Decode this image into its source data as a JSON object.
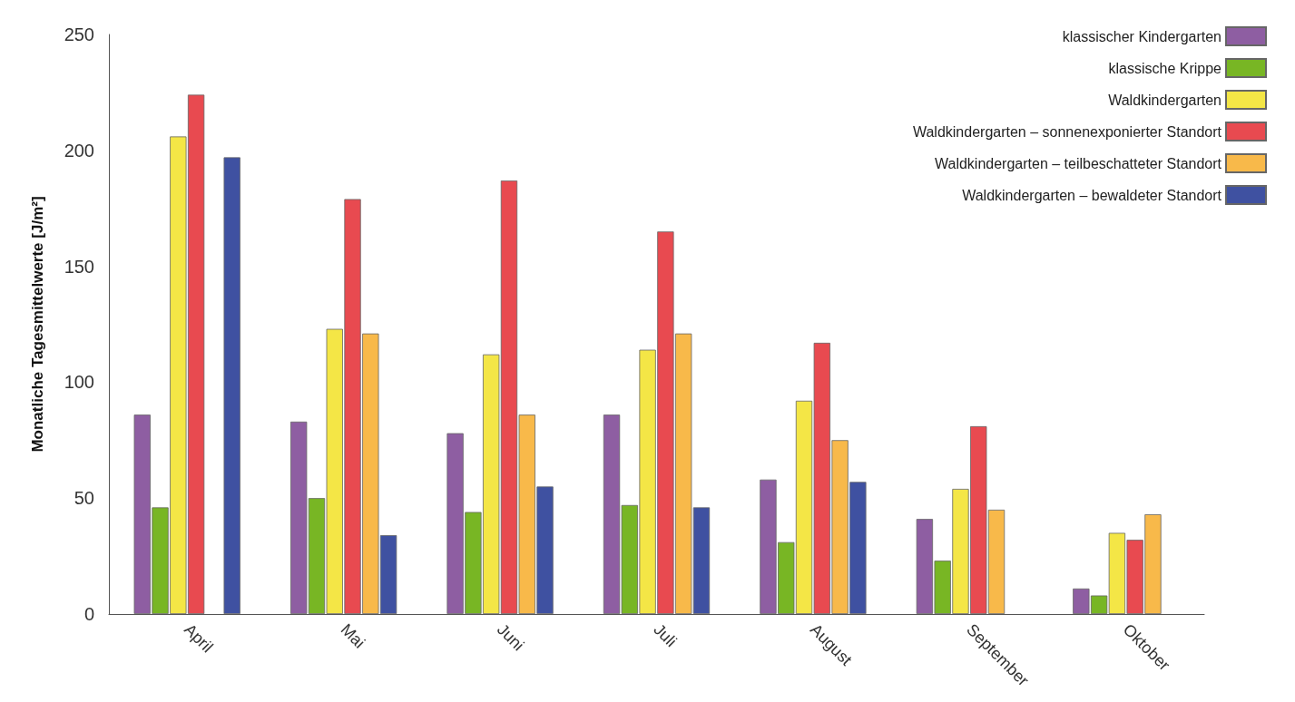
{
  "chart_data": {
    "type": "bar",
    "ylabel": "Monatliche Tagesmittelwerte [J/m²]",
    "categories": [
      "April",
      "Mai",
      "Juni",
      "Juli",
      "August",
      "September",
      "Oktober"
    ],
    "series": [
      {
        "name": "klassischer Kindergarten",
        "color": "#8e5ea2",
        "values": [
          86,
          83,
          78,
          86,
          58,
          41,
          11
        ]
      },
      {
        "name": "klassische Krippe",
        "color": "#78b624",
        "values": [
          46,
          50,
          44,
          47,
          31,
          23,
          8
        ]
      },
      {
        "name": "Waldkindergarten",
        "color": "#f4e646",
        "values": [
          206,
          123,
          112,
          114,
          92,
          54,
          35
        ]
      },
      {
        "name": "Waldkindergarten – sonnenexponierter Standort",
        "color": "#e84a50",
        "values": [
          224,
          179,
          187,
          165,
          117,
          81,
          32
        ]
      },
      {
        "name": "Waldkindergarten – teilbeschatteter Standort",
        "color": "#f8b94a",
        "values": [
          null,
          121,
          86,
          121,
          75,
          45,
          43
        ]
      },
      {
        "name": "Waldkindergarten – bewaldeter Standort",
        "color": "#3f51a1",
        "values": [
          197,
          34,
          55,
          46,
          57,
          null,
          null
        ]
      }
    ],
    "ylim": [
      0,
      250
    ],
    "yticks": [
      0,
      50,
      100,
      150,
      200,
      250
    ],
    "grid": false,
    "legend": "top right"
  }
}
